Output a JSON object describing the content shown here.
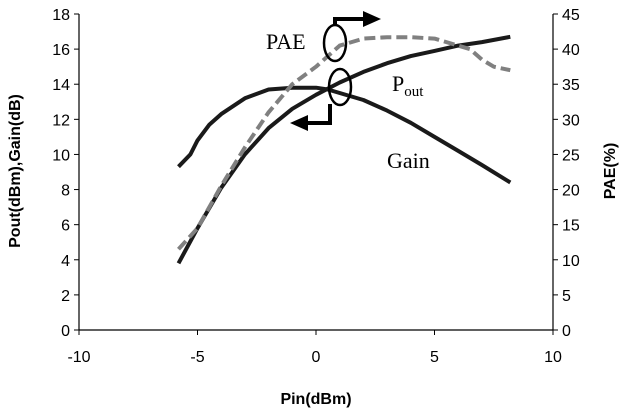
{
  "chart_data": {
    "type": "line",
    "xlabel": "Pin(dBm)",
    "ylabel": "Pout(dBm),Gain(dB)",
    "y2label": "PAE(%)",
    "xlim": [
      -10,
      10
    ],
    "ylim": [
      0,
      18
    ],
    "y2lim": [
      0,
      45
    ],
    "x_ticks": [
      "-10",
      "-5",
      "0",
      "5",
      "10"
    ],
    "y_ticks": [
      "0",
      "2",
      "4",
      "6",
      "8",
      "10",
      "12",
      "14",
      "16",
      "18"
    ],
    "y2_ticks": [
      "0",
      "5",
      "10",
      "15",
      "20",
      "25",
      "30",
      "35",
      "40",
      "45"
    ],
    "grid": false,
    "legend": "none",
    "annotations": {
      "pae": "PAE",
      "pout_main": "P",
      "pout_sub": "out",
      "gain": "Gain"
    },
    "series": [
      {
        "axis": "left",
        "color": "#1a1a1a",
        "style": "solid",
        "x": [
          -5.8,
          -5,
          -4,
          -3,
          -2,
          -1,
          0,
          1,
          2,
          3,
          4,
          5,
          6,
          7,
          8.2
        ],
        "y": [
          3.8,
          5.8,
          8.1,
          10.0,
          11.5,
          12.6,
          13.4,
          14.1,
          14.7,
          15.2,
          15.6,
          15.9,
          16.2,
          16.4,
          16.7
        ]
      },
      {
        "axis": "left",
        "color": "#1a1a1a",
        "style": "solid",
        "x": [
          -5.8,
          -5.3,
          -5,
          -4.5,
          -4,
          -3,
          -2,
          -1,
          0,
          0.5,
          1,
          2,
          3,
          4,
          5,
          6,
          7,
          8.2
        ],
        "y": [
          9.3,
          10.0,
          10.8,
          11.7,
          12.3,
          13.2,
          13.7,
          13.8,
          13.8,
          13.7,
          13.5,
          13.1,
          12.5,
          11.8,
          11.0,
          10.2,
          9.4,
          8.4
        ]
      },
      {
        "axis": "right",
        "color": "#808080",
        "style": "dashed",
        "x": [
          -5.8,
          -5,
          -4,
          -3,
          -2,
          -1,
          0,
          1,
          2,
          3,
          4,
          5,
          6,
          6.5,
          7,
          7.5,
          8.2
        ],
        "y": [
          11.5,
          14.5,
          20.5,
          26.0,
          31.0,
          35.0,
          37.5,
          40.5,
          41.5,
          41.7,
          41.7,
          41.5,
          40.5,
          40.0,
          38.5,
          37.5,
          37.0
        ]
      }
    ]
  }
}
